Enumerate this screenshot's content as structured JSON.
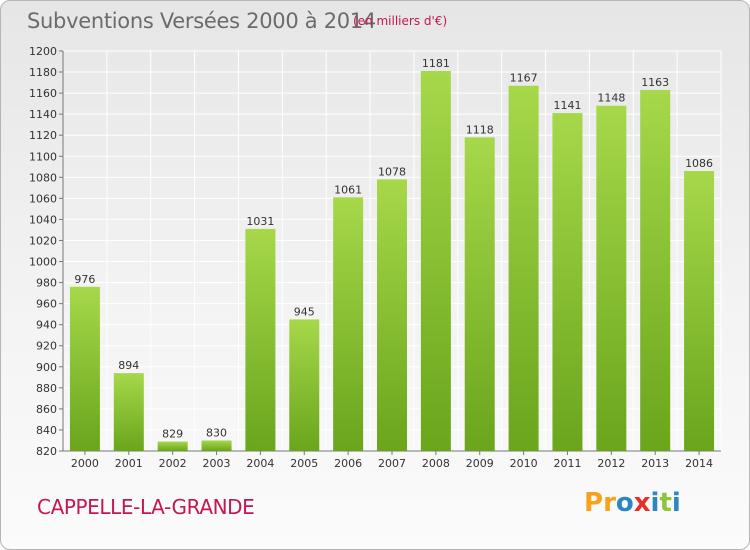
{
  "header": {
    "title": "Subventions Versées 2000 à 2014",
    "subtitle": "(en milliers d'€)"
  },
  "footer": {
    "city": "CAPPELLE-LA-GRANDE",
    "logo": {
      "letters": [
        "P",
        "r",
        "o",
        "x",
        "i",
        "t",
        "i"
      ],
      "colors": [
        "#f7a21b",
        "#f7a21b",
        "#2e86c1",
        "#e5302a",
        "#2e86c1",
        "#8cc63f",
        "#2e86c1"
      ]
    }
  },
  "colors": {
    "bar_light": "#a6d84a",
    "bar_dark": "#6aa51c",
    "accent": "#c4174f"
  },
  "chart_data": {
    "type": "bar",
    "title": "Subventions Versées 2000 à 2014",
    "subtitle": "(en milliers d'€)",
    "xlabel": "",
    "ylabel": "",
    "categories": [
      "2000",
      "2001",
      "2002",
      "2003",
      "2004",
      "2005",
      "2006",
      "2007",
      "2008",
      "2009",
      "2010",
      "2011",
      "2012",
      "2013",
      "2014"
    ],
    "values": [
      976,
      894,
      829,
      830,
      1031,
      945,
      1061,
      1078,
      1181,
      1118,
      1167,
      1141,
      1148,
      1163,
      1086
    ],
    "ylim": [
      820,
      1200
    ],
    "yticks": [
      820,
      840,
      860,
      880,
      900,
      920,
      940,
      960,
      980,
      1000,
      1020,
      1040,
      1060,
      1080,
      1100,
      1120,
      1140,
      1160,
      1180,
      1200
    ],
    "grid": true,
    "legend": "none"
  }
}
